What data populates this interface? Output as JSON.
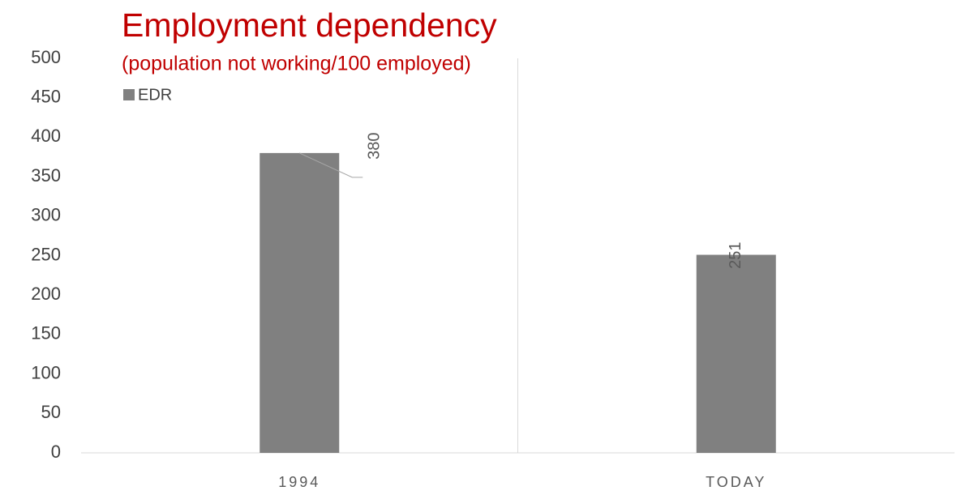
{
  "chart_data": {
    "type": "bar",
    "title": "Employment dependency",
    "subtitle": "(population not working/100 employed)",
    "categories": [
      "1994",
      "TODAY"
    ],
    "series": [
      {
        "name": "EDR",
        "color": "#808080",
        "values": [
          380,
          251
        ]
      }
    ],
    "ylim": [
      0,
      500
    ],
    "yticks": [
      0,
      50,
      100,
      150,
      200,
      250,
      300,
      350,
      400,
      450,
      500
    ],
    "grid": false,
    "legend": "top-left"
  }
}
